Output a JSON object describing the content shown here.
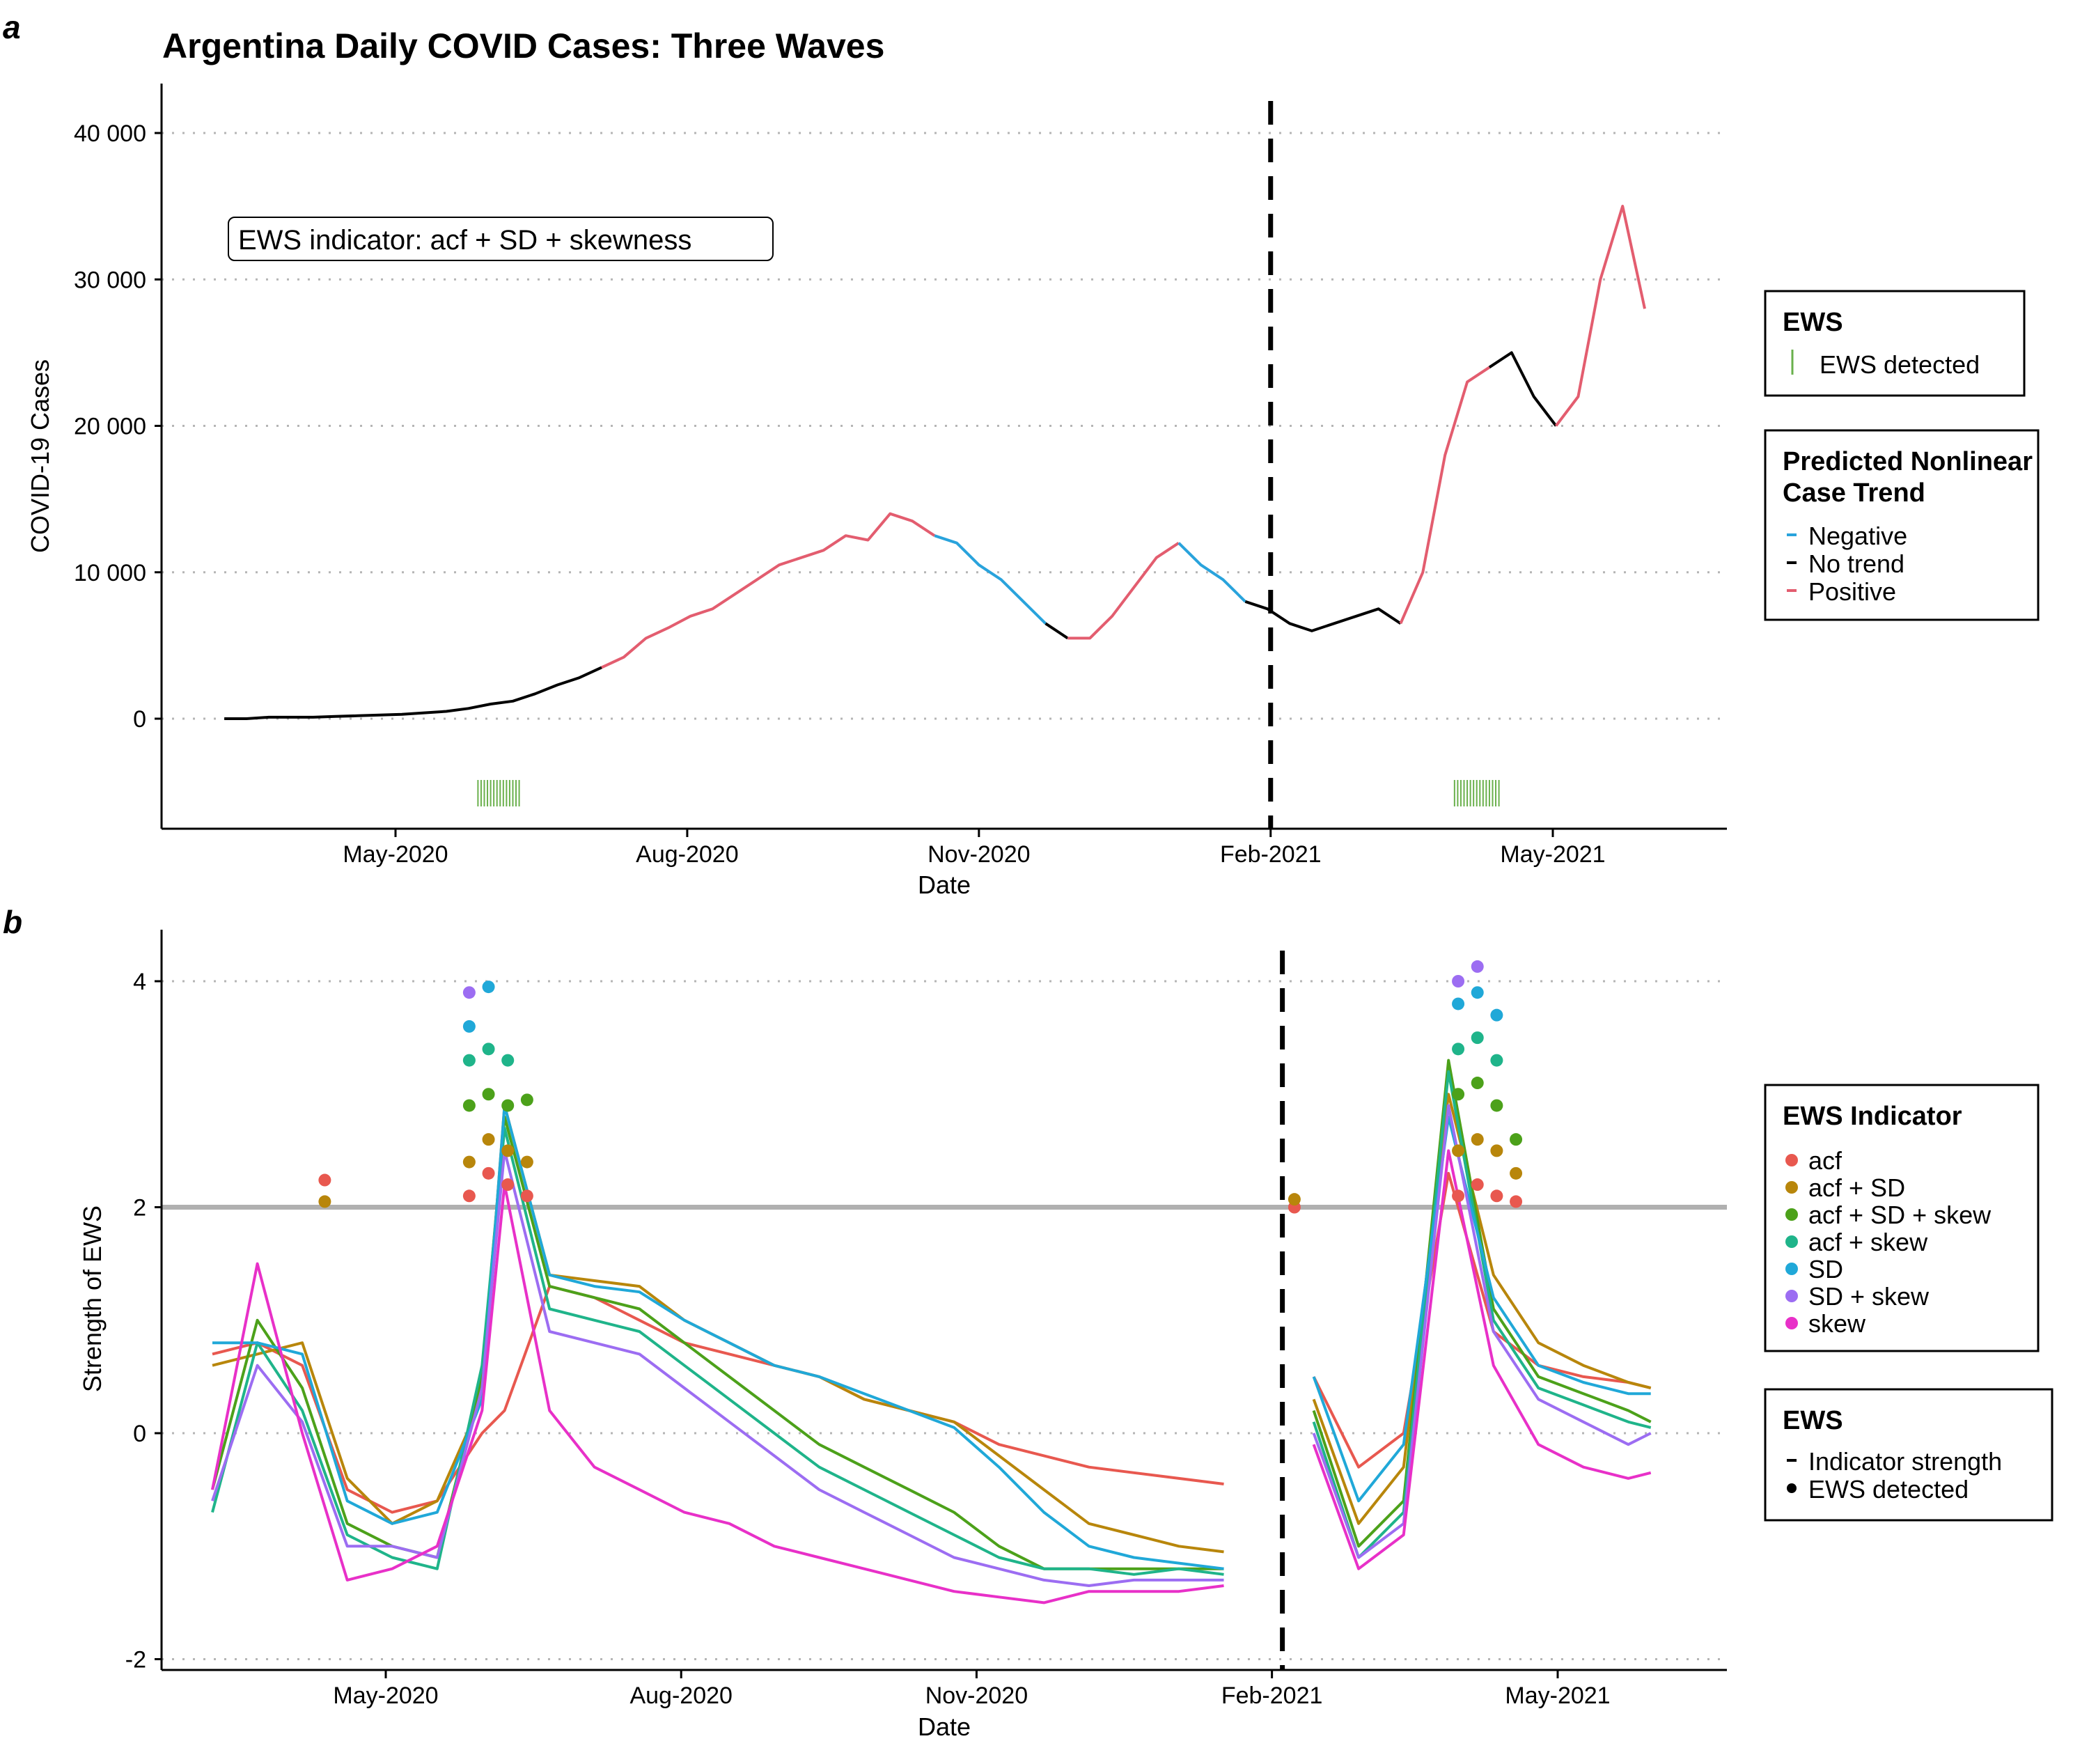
{
  "panel_labels": [
    "a",
    "b"
  ],
  "chart_data": [
    {
      "panel": "a",
      "type": "line",
      "title": "Argentina Daily COVID Cases: Three Waves",
      "xlabel": "Date",
      "ylabel": "COVID-19 Cases",
      "x_ticks": [
        "May-2020",
        "Aug-2020",
        "Nov-2020",
        "Feb-2021",
        "May-2021"
      ],
      "y_ticks": [
        "0",
        "10 000",
        "20 000",
        "30 000",
        "40 000"
      ],
      "ylim": [
        -7500,
        43500
      ],
      "grid": "horizontal dotted",
      "annotation": "EWS indicator: acf + SD + skewness",
      "vline_date": "2021-02-01",
      "trend_colors": {
        "Negative": "#29a3dc",
        "No trend": "#000000",
        "Positive": "#e35d6f"
      },
      "x_dates": [
        "2020-03-08",
        "2020-03-15",
        "2020-03-22",
        "2020-03-29",
        "2020-04-05",
        "2020-04-12",
        "2020-04-19",
        "2020-04-26",
        "2020-05-03",
        "2020-05-10",
        "2020-05-17",
        "2020-05-24",
        "2020-05-31",
        "2020-06-07",
        "2020-06-14",
        "2020-06-21",
        "2020-06-28",
        "2020-07-05",
        "2020-07-12",
        "2020-07-19",
        "2020-07-26",
        "2020-08-02",
        "2020-08-09",
        "2020-08-16",
        "2020-08-23",
        "2020-08-30",
        "2020-09-06",
        "2020-09-13",
        "2020-09-20",
        "2020-09-27",
        "2020-10-04",
        "2020-10-11",
        "2020-10-18",
        "2020-10-25",
        "2020-11-01",
        "2020-11-08",
        "2020-11-15",
        "2020-11-22",
        "2020-11-29",
        "2020-12-06",
        "2020-12-13",
        "2020-12-20",
        "2020-12-27",
        "2021-01-03",
        "2021-01-10",
        "2021-01-17",
        "2021-01-24",
        "2021-01-31",
        "2021-02-07",
        "2021-02-14",
        "2021-02-21",
        "2021-02-28",
        "2021-03-07",
        "2021-03-14",
        "2021-03-21",
        "2021-03-28",
        "2021-04-04",
        "2021-04-11",
        "2021-04-18",
        "2021-04-25",
        "2021-05-02",
        "2021-05-09",
        "2021-05-16",
        "2021-05-23",
        "2021-05-30"
      ],
      "cases": [
        0,
        0,
        100,
        100,
        100,
        150,
        200,
        250,
        300,
        400,
        500,
        700,
        1000,
        1200,
        1700,
        2300,
        2800,
        3500,
        4200,
        5500,
        6200,
        7000,
        7500,
        8500,
        9500,
        10500,
        11000,
        11500,
        12500,
        12200,
        14000,
        13500,
        12500,
        12000,
        10500,
        9500,
        8000,
        6500,
        5500,
        5500,
        7000,
        9000,
        11000,
        12000,
        10500,
        9500,
        8000,
        7500,
        6500,
        6000,
        6500,
        7000,
        7500,
        6500,
        10000,
        18000,
        23000,
        24000,
        25000,
        22000,
        20000,
        22000,
        30000,
        35000,
        28000
      ],
      "segments": [
        {
          "trend": "No trend",
          "from": 0,
          "to": 17
        },
        {
          "trend": "Positive",
          "from": 17,
          "to": 32
        },
        {
          "trend": "Negative",
          "from": 32,
          "to": 37
        },
        {
          "trend": "No trend",
          "from": 37,
          "to": 38
        },
        {
          "trend": "Positive",
          "from": 38,
          "to": 43
        },
        {
          "trend": "Negative",
          "from": 43,
          "to": 46
        },
        {
          "trend": "No trend",
          "from": 46,
          "to": 53
        },
        {
          "trend": "Positive",
          "from": 53,
          "to": 57
        },
        {
          "trend": "No trend",
          "from": 57,
          "to": 60
        },
        {
          "trend": "Positive",
          "from": 60,
          "to": 64
        }
      ],
      "ews_detected_ranges": [
        [
          "2020-05-27",
          "2020-06-09"
        ],
        [
          "2021-03-31",
          "2021-04-14"
        ]
      ]
    },
    {
      "panel": "b",
      "type": "line",
      "xlabel": "Date",
      "ylabel": "Strength of EWS",
      "x_ticks": [
        "May-2020",
        "Aug-2020",
        "Nov-2020",
        "Feb-2021",
        "May-2021"
      ],
      "y_ticks": [
        "-2",
        "0",
        "2",
        "4"
      ],
      "ylim": [
        -2.05,
        4.4
      ],
      "threshold": 2,
      "grid": "horizontal dotted",
      "vline_date": "2021-02-01",
      "x_dates": [
        "2020-03-08",
        "2020-03-22",
        "2020-04-05",
        "2020-04-19",
        "2020-05-03",
        "2020-05-17",
        "2020-05-31",
        "2020-06-07",
        "2020-06-21",
        "2020-07-05",
        "2020-07-19",
        "2020-08-02",
        "2020-08-16",
        "2020-08-30",
        "2020-09-13",
        "2020-09-27",
        "2020-10-11",
        "2020-10-25",
        "2020-11-08",
        "2020-11-22",
        "2020-12-06",
        "2020-12-20",
        "2021-01-03",
        "2021-01-17",
        "2021-01-31",
        "2021-02-14",
        "2021-02-28",
        "2021-03-14",
        "2021-03-28",
        "2021-04-11",
        "2021-04-25",
        "2021-05-09",
        "2021-05-23",
        "2021-05-30"
      ],
      "series": [
        {
          "name": "acf",
          "color": "#e8584f",
          "values": [
            0.7,
            0.8,
            0.6,
            -0.5,
            -0.7,
            -0.6,
            0.0,
            0.2,
            1.3,
            1.2,
            1.0,
            0.8,
            0.7,
            0.6,
            0.5,
            0.3,
            0.2,
            0.1,
            -0.1,
            -0.2,
            -0.3,
            -0.35,
            -0.4,
            -0.45,
            null,
            0.5,
            -0.3,
            0.0,
            2.3,
            0.9,
            0.6,
            0.5,
            0.45,
            0.4
          ]
        },
        {
          "name": "acf + SD",
          "color": "#b8860b",
          "values": [
            0.6,
            0.7,
            0.8,
            -0.4,
            -0.8,
            -0.6,
            0.3,
            2.9,
            1.4,
            1.35,
            1.3,
            1.0,
            0.8,
            0.6,
            0.5,
            0.3,
            0.2,
            0.1,
            -0.2,
            -0.5,
            -0.8,
            -0.9,
            -1.0,
            -1.05,
            null,
            0.3,
            -0.8,
            -0.3,
            3.0,
            1.4,
            0.8,
            0.6,
            0.45,
            0.4
          ]
        },
        {
          "name": "acf + SD + skew",
          "color": "#4ca11a",
          "values": [
            -0.5,
            1.0,
            0.4,
            -0.8,
            -1.0,
            -1.1,
            0.5,
            2.8,
            1.3,
            1.2,
            1.1,
            0.8,
            0.5,
            0.2,
            -0.1,
            -0.3,
            -0.5,
            -0.7,
            -1.0,
            -1.2,
            -1.2,
            -1.2,
            -1.2,
            -1.2,
            null,
            0.2,
            -1.0,
            -0.6,
            3.3,
            1.1,
            0.5,
            0.35,
            0.2,
            0.1
          ]
        },
        {
          "name": "acf + skew",
          "color": "#1fb48a",
          "values": [
            -0.7,
            0.8,
            0.2,
            -0.9,
            -1.1,
            -1.2,
            0.6,
            2.7,
            1.1,
            1.0,
            0.9,
            0.6,
            0.3,
            0.0,
            -0.3,
            -0.5,
            -0.7,
            -0.9,
            -1.1,
            -1.2,
            -1.2,
            -1.25,
            -1.2,
            -1.25,
            null,
            0.1,
            -1.1,
            -0.7,
            3.2,
            1.0,
            0.4,
            0.25,
            0.1,
            0.05
          ]
        },
        {
          "name": "SD",
          "color": "#20a8d8",
          "values": [
            0.8,
            0.8,
            0.7,
            -0.6,
            -0.8,
            -0.7,
            0.3,
            2.9,
            1.4,
            1.3,
            1.25,
            1.0,
            0.8,
            0.6,
            0.5,
            0.35,
            0.2,
            0.05,
            -0.3,
            -0.7,
            -1.0,
            -1.1,
            -1.15,
            -1.2,
            null,
            0.5,
            -0.6,
            -0.1,
            2.8,
            1.2,
            0.6,
            0.45,
            0.35,
            0.35
          ]
        },
        {
          "name": "SD + skew",
          "color": "#9c6df2",
          "values": [
            -0.6,
            0.6,
            0.1,
            -1.0,
            -1.0,
            -1.1,
            0.4,
            2.5,
            0.9,
            0.8,
            0.7,
            0.4,
            0.1,
            -0.2,
            -0.5,
            -0.7,
            -0.9,
            -1.1,
            -1.2,
            -1.3,
            -1.35,
            -1.3,
            -1.3,
            -1.3,
            null,
            0.0,
            -1.1,
            -0.8,
            2.9,
            0.9,
            0.3,
            0.1,
            -0.1,
            0.0
          ]
        },
        {
          "name": "skew",
          "color": "#e830c8",
          "values": [
            -0.5,
            1.5,
            0.0,
            -1.3,
            -1.2,
            -1.0,
            0.2,
            2.2,
            0.2,
            -0.3,
            -0.5,
            -0.7,
            -0.8,
            -1.0,
            -1.1,
            -1.2,
            -1.3,
            -1.4,
            -1.45,
            -1.5,
            -1.4,
            -1.4,
            -1.4,
            -1.35,
            null,
            -0.1,
            -1.2,
            -0.9,
            2.5,
            0.6,
            -0.1,
            -0.3,
            -0.4,
            -0.35
          ]
        }
      ],
      "ews_points": [
        {
          "date": "2020-04-12",
          "values": [
            2.24,
            2.05
          ]
        },
        {
          "date": "2020-05-27",
          "values": [
            2.1,
            2.4,
            2.9,
            3.3,
            3.6,
            3.9
          ]
        },
        {
          "date": "2020-06-02",
          "values": [
            2.3,
            2.6,
            3.0,
            3.4,
            3.95
          ]
        },
        {
          "date": "2020-06-08",
          "values": [
            2.2,
            2.5,
            2.9,
            3.3
          ]
        },
        {
          "date": "2020-06-14",
          "values": [
            2.1,
            2.4,
            2.95
          ]
        },
        {
          "date": "2021-02-08",
          "values": [
            2.0,
            2.07
          ]
        },
        {
          "date": "2021-03-31",
          "values": [
            2.1,
            2.5,
            3.0,
            3.4,
            3.8,
            4.0
          ]
        },
        {
          "date": "2021-04-06",
          "values": [
            2.2,
            2.6,
            3.1,
            3.5,
            3.9,
            4.13
          ]
        },
        {
          "date": "2021-04-12",
          "values": [
            2.1,
            2.5,
            2.9,
            3.3,
            3.7
          ]
        },
        {
          "date": "2021-04-18",
          "values": [
            2.05,
            2.3,
            2.6
          ]
        }
      ]
    }
  ],
  "legends": {
    "a_ews": {
      "title": "EWS",
      "items": [
        {
          "label": "EWS detected",
          "color": "#6ab04c"
        }
      ]
    },
    "a_trend": {
      "title_line1": "Predicted Nonlinear",
      "title_line2": "Case Trend",
      "items": [
        {
          "label": "Negative",
          "color": "#29a3dc"
        },
        {
          "label": "No trend",
          "color": "#000000"
        },
        {
          "label": "Positive",
          "color": "#e35d6f"
        }
      ]
    },
    "b_indicator": {
      "title": "EWS Indicator",
      "items": [
        {
          "label": "acf",
          "color": "#e8584f"
        },
        {
          "label": "acf + SD",
          "color": "#b8860b"
        },
        {
          "label": "acf + SD + skew",
          "color": "#4ca11a"
        },
        {
          "label": "acf + skew",
          "color": "#1fb48a"
        },
        {
          "label": "SD",
          "color": "#20a8d8"
        },
        {
          "label": "SD + skew",
          "color": "#9c6df2"
        },
        {
          "label": "skew",
          "color": "#e830c8"
        }
      ]
    },
    "b_ews": {
      "title": "EWS",
      "items": [
        {
          "label": "Indicator strength",
          "marker": "line"
        },
        {
          "label": "EWS detected",
          "marker": "dot"
        }
      ]
    }
  }
}
